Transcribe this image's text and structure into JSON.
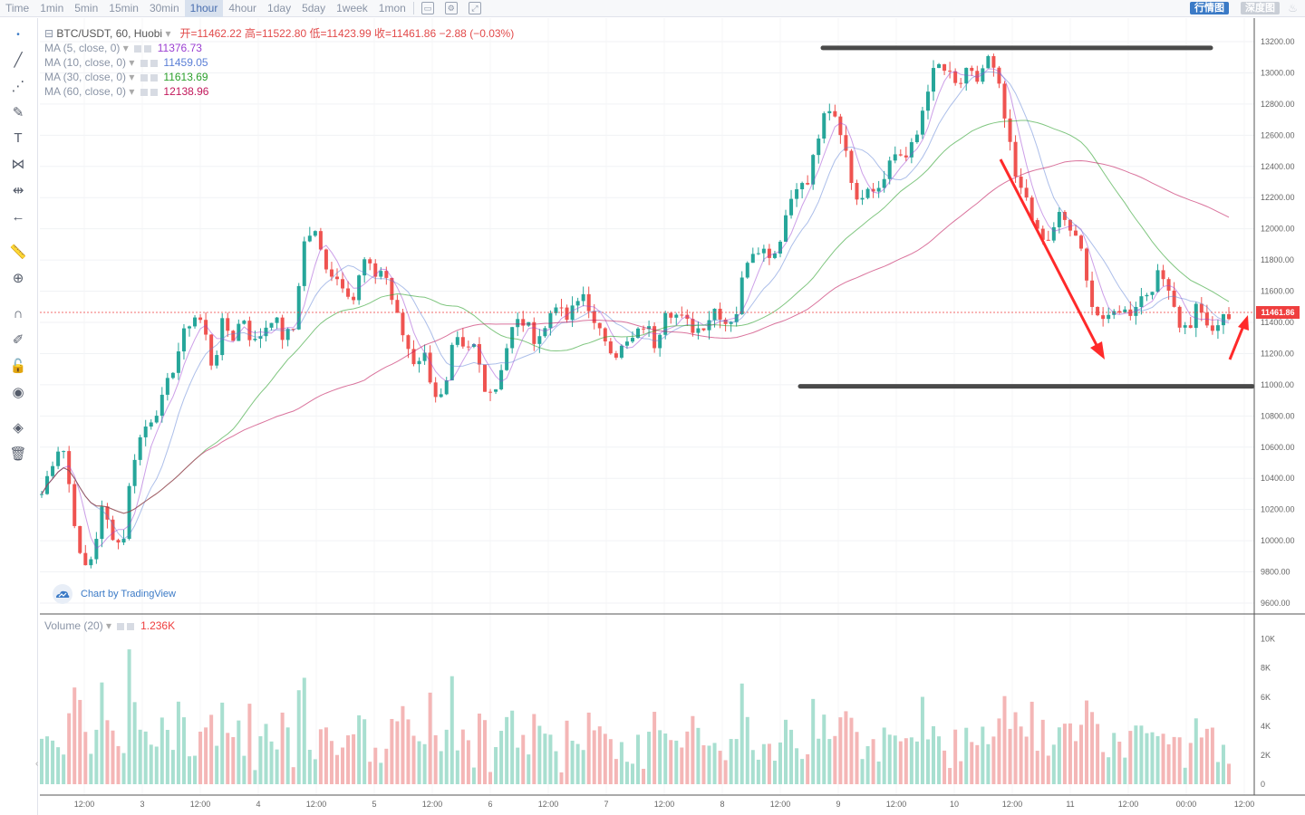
{
  "toolbar": {
    "timeframes": [
      "Time",
      "1min",
      "5min",
      "15min",
      "30min",
      "1hour",
      "4hour",
      "1day",
      "5day",
      "1week",
      "1mon"
    ],
    "active_timeframe": "1hour",
    "right_tabs": {
      "kline": "行情图",
      "depth": "深度图"
    }
  },
  "legend": {
    "symbol": "BTC/USDT, 60, Huobi",
    "ohlc": "开=11462.22 高=11522.80 低=11423.99 收=11461.86 −2.88 (−0.03%)",
    "ma": [
      {
        "label": "MA (5, close, 0)",
        "value": "11376.73",
        "color": "#9b3fd1"
      },
      {
        "label": "MA (10, close, 0)",
        "value": "11459.05",
        "color": "#5b7fd6"
      },
      {
        "label": "MA (30, close, 0)",
        "value": "11613.69",
        "color": "#2ca02c"
      },
      {
        "label": "MA (60, close, 0)",
        "value": "12138.96",
        "color": "#c2185b"
      }
    ]
  },
  "volume_legend": {
    "label": "Volume (20)",
    "value": "1.236K"
  },
  "price_axis": {
    "labels": [
      "13200.00",
      "13000.00",
      "12800.00",
      "12600.00",
      "12400.00",
      "12200.00",
      "12000.00",
      "11800.00",
      "11600.00",
      "11400.00",
      "11200.00",
      "11000.00",
      "10800.00",
      "10600.00",
      "10400.00",
      "10200.00",
      "10000.00",
      "9800.00",
      "9600.00"
    ],
    "current_price": "11461.86"
  },
  "volume_axis": {
    "labels": [
      "10K",
      "8K",
      "6K",
      "4K",
      "2K",
      "0"
    ]
  },
  "time_axis": {
    "labels": [
      "12:00",
      "3",
      "12:00",
      "4",
      "12:00",
      "5",
      "12:00",
      "6",
      "12:00",
      "7",
      "12:00",
      "8",
      "12:00",
      "9",
      "12:00",
      "10",
      "12:00",
      "11",
      "12:00",
      "00:00",
      "12:00"
    ]
  },
  "branding": {
    "text": "Chart by TradingView"
  },
  "colors": {
    "up": "#26a69a",
    "down": "#ef5350",
    "up_vol": "#a8dfd0",
    "down_vol": "#f4b6b6",
    "annotation": "#4a4a4a",
    "arrow": "#ff2a2a"
  },
  "chart_data": {
    "type": "candlestick",
    "title": "BTC/USDT, 60, Huobi",
    "ylim": [
      9500,
      13300
    ],
    "annotations": {
      "resistance": 13160,
      "support": 10990
    },
    "price_path": [
      10300,
      10500,
      10650,
      10250,
      9800,
      9900,
      10200,
      10050,
      9950,
      10500,
      10700,
      10800,
      10900,
      11100,
      11300,
      11450,
      11400,
      11100,
      11400,
      11300,
      11450,
      11250,
      11350,
      11450,
      11300,
      11350,
      11900,
      12000,
      11800,
      11700,
      11650,
      11550,
      11800,
      11700,
      11750,
      11500,
      11300,
      11150,
      11200,
      10950,
      10900,
      11300,
      11200,
      11250,
      11000,
      10950,
      11200,
      11400,
      11400,
      11300,
      11350,
      11550,
      11400,
      11500,
      11600,
      11350,
      11300,
      11200,
      11250,
      11300,
      11400,
      11250,
      11500,
      11450,
      11400,
      11350,
      11400,
      11500,
      11400,
      11450,
      11800,
      11900,
      11850,
      11850,
      12100,
      12300,
      12250,
      12550,
      12750,
      12700,
      12500,
      12150,
      12300,
      12250,
      12400,
      12500,
      12450,
      12600,
      12900,
      13050,
      13000,
      12900,
      13000,
      12950,
      13100,
      12950,
      12600,
      12250,
      12200,
      11950,
      11900,
      12100,
      12000,
      11950,
      11600,
      11450,
      11400,
      11500,
      11450,
      11550,
      11600,
      11700,
      11650,
      11400,
      11350,
      11550,
      11300,
      11400,
      11450
    ]
  }
}
